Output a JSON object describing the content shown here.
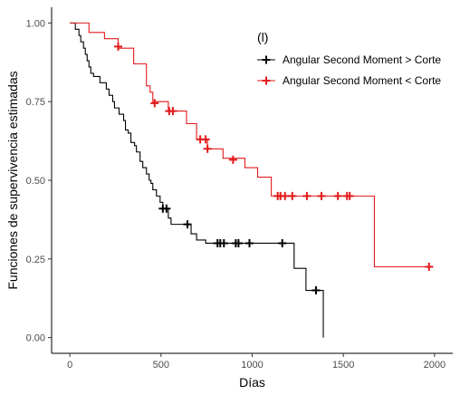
{
  "chart_data": {
    "type": "line",
    "subtype": "kaplan-meier step survival curve",
    "xlabel": "Días",
    "ylabel": "Funciones de supervivencia estimadas",
    "xlim": [
      -100,
      2100
    ],
    "ylim": [
      -0.05,
      1.05
    ],
    "xticks": [
      0,
      500,
      1000,
      1500,
      2000
    ],
    "yticks": [
      0.0,
      0.25,
      0.5,
      0.75,
      1.0
    ],
    "ytick_labels": [
      "0.00",
      "0.25",
      "0.50",
      "0.75",
      "1.00"
    ],
    "grid": false,
    "legend": {
      "title": "(l)",
      "placement": "top-right, inside plot"
    },
    "series": [
      {
        "name": "Angular Second Moment  > Corte",
        "color": "#000000",
        "steps": [
          [
            0,
            1.0
          ],
          [
            30,
            0.98
          ],
          [
            50,
            0.96
          ],
          [
            60,
            0.94
          ],
          [
            75,
            0.92
          ],
          [
            85,
            0.9
          ],
          [
            95,
            0.88
          ],
          [
            105,
            0.86
          ],
          [
            115,
            0.84
          ],
          [
            130,
            0.83
          ],
          [
            165,
            0.81
          ],
          [
            200,
            0.79
          ],
          [
            215,
            0.77
          ],
          [
            235,
            0.75
          ],
          [
            245,
            0.73
          ],
          [
            270,
            0.71
          ],
          [
            295,
            0.69
          ],
          [
            305,
            0.66
          ],
          [
            320,
            0.65
          ],
          [
            335,
            0.62
          ],
          [
            355,
            0.61
          ],
          [
            365,
            0.59
          ],
          [
            385,
            0.56
          ],
          [
            400,
            0.54
          ],
          [
            420,
            0.52
          ],
          [
            435,
            0.5
          ],
          [
            445,
            0.49
          ],
          [
            455,
            0.47
          ],
          [
            475,
            0.45
          ],
          [
            495,
            0.43
          ],
          [
            510,
            0.41
          ],
          [
            540,
            0.38
          ],
          [
            555,
            0.36
          ],
          [
            650,
            0.36
          ],
          [
            665,
            0.33
          ],
          [
            695,
            0.31
          ],
          [
            745,
            0.3
          ],
          [
            1225,
            0.3
          ],
          [
            1230,
            0.22
          ],
          [
            1290,
            0.22
          ],
          [
            1295,
            0.15
          ],
          [
            1385,
            0.15
          ],
          [
            1390,
            0.0
          ]
        ],
        "censored": [
          [
            510,
            0.41
          ],
          [
            530,
            0.41
          ],
          [
            645,
            0.36
          ],
          [
            810,
            0.3
          ],
          [
            825,
            0.3
          ],
          [
            845,
            0.3
          ],
          [
            910,
            0.3
          ],
          [
            925,
            0.3
          ],
          [
            985,
            0.3
          ],
          [
            1165,
            0.3
          ],
          [
            1350,
            0.15
          ]
        ]
      },
      {
        "name": "Angular Second Moment < Corte",
        "color": "#e31a1c",
        "steps": [
          [
            0,
            1.0
          ],
          [
            105,
            0.97
          ],
          [
            190,
            0.95
          ],
          [
            265,
            0.92
          ],
          [
            350,
            0.87
          ],
          [
            420,
            0.8
          ],
          [
            440,
            0.78
          ],
          [
            455,
            0.75
          ],
          [
            540,
            0.72
          ],
          [
            640,
            0.68
          ],
          [
            695,
            0.63
          ],
          [
            755,
            0.6
          ],
          [
            840,
            0.57
          ],
          [
            960,
            0.54
          ],
          [
            1030,
            0.51
          ],
          [
            1105,
            0.45
          ],
          [
            1665,
            0.45
          ],
          [
            1670,
            0.225
          ],
          [
            1975,
            0.225
          ]
        ],
        "censored": [
          [
            265,
            0.925
          ],
          [
            465,
            0.745
          ],
          [
            545,
            0.72
          ],
          [
            565,
            0.72
          ],
          [
            715,
            0.63
          ],
          [
            745,
            0.63
          ],
          [
            755,
            0.6
          ],
          [
            895,
            0.565
          ],
          [
            1140,
            0.45
          ],
          [
            1155,
            0.45
          ],
          [
            1180,
            0.45
          ],
          [
            1220,
            0.45
          ],
          [
            1300,
            0.45
          ],
          [
            1380,
            0.45
          ],
          [
            1470,
            0.45
          ],
          [
            1520,
            0.45
          ],
          [
            1535,
            0.45
          ],
          [
            1970,
            0.225
          ]
        ]
      }
    ]
  }
}
